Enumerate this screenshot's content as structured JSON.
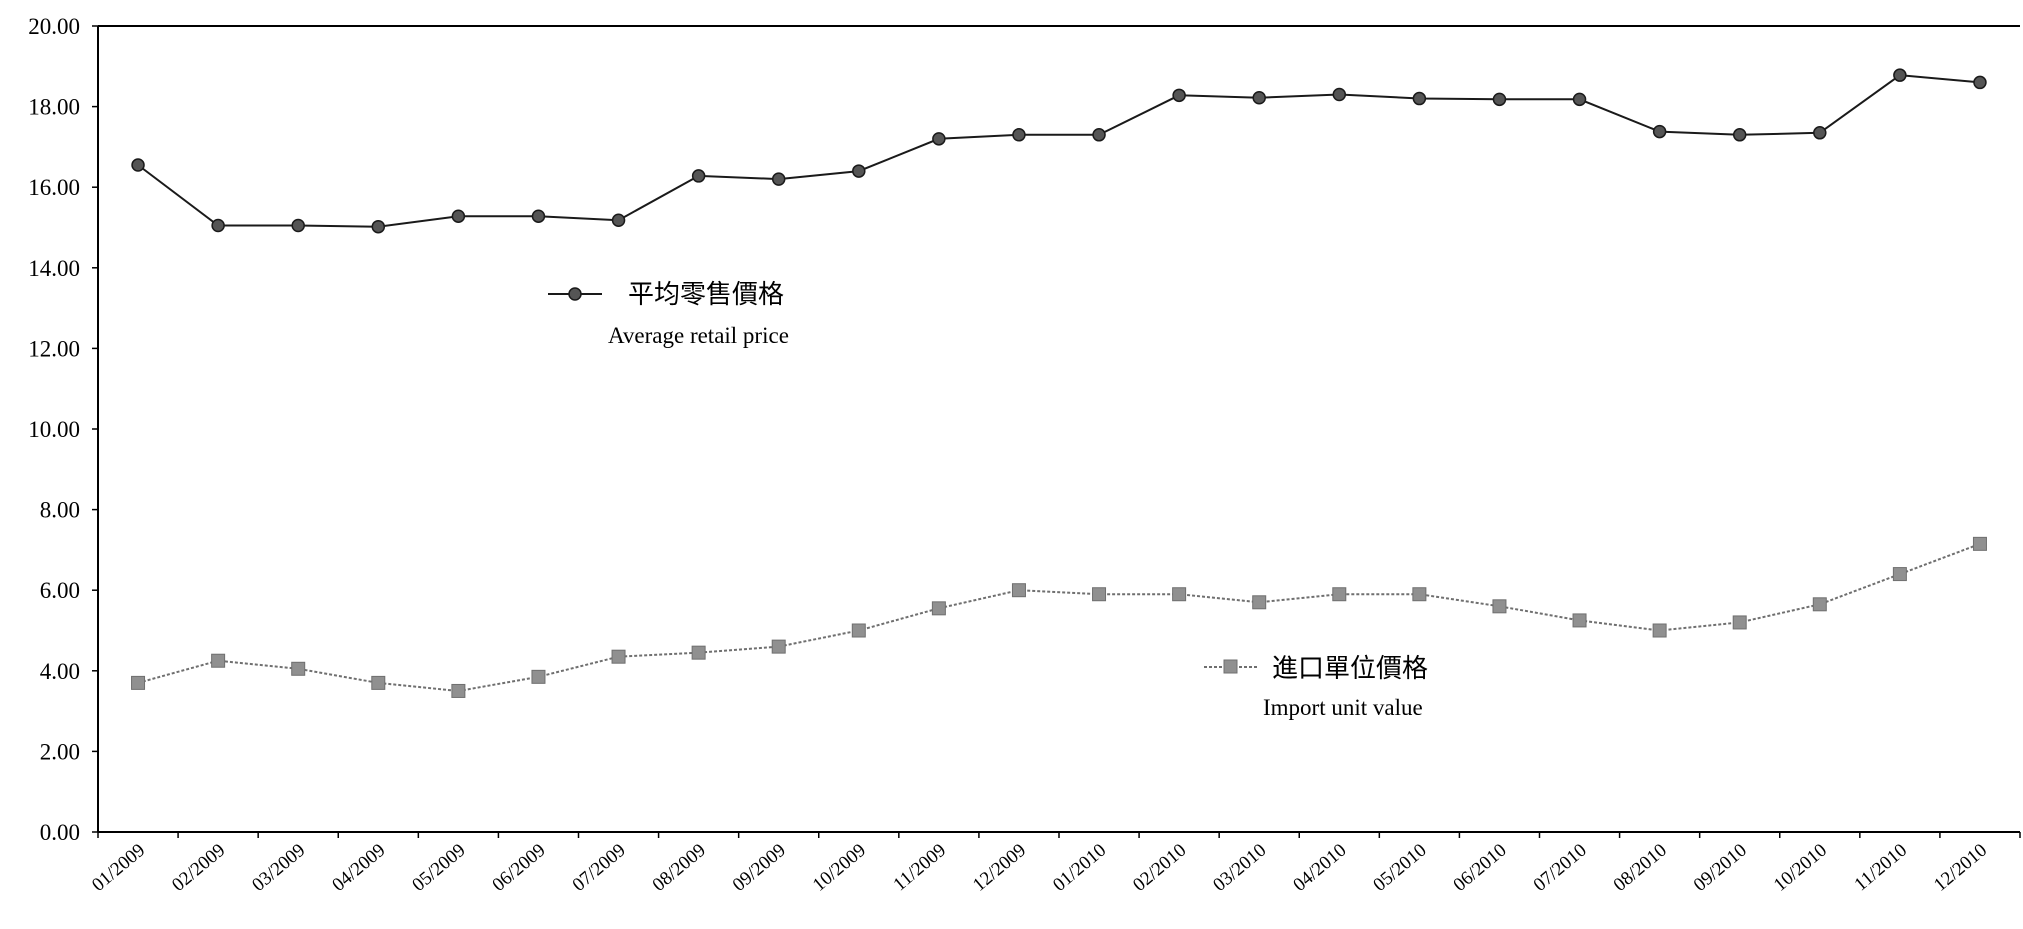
{
  "chart_data": {
    "type": "line",
    "title": "",
    "xlabel": "",
    "ylabel": "",
    "ylim": [
      0,
      20
    ],
    "y_ticks": [
      "0.00",
      "2.00",
      "4.00",
      "6.00",
      "8.00",
      "10.00",
      "12.00",
      "14.00",
      "16.00",
      "18.00",
      "20.00"
    ],
    "grid": false,
    "categories": [
      "01/2009",
      "02/2009",
      "03/2009",
      "04/2009",
      "05/2009",
      "06/2009",
      "07/2009",
      "08/2009",
      "09/2009",
      "10/2009",
      "11/2009",
      "12/2009",
      "01/2010",
      "02/2010",
      "03/2010",
      "04/2010",
      "05/2010",
      "06/2010",
      "07/2010",
      "08/2010",
      "09/2010",
      "10/2010",
      "11/2010",
      "12/2010"
    ],
    "series": [
      {
        "name": "平均零售價格",
        "name_en": "Average retail price",
        "color": "#1a1a1a",
        "marker_color": "#555555",
        "values": [
          16.55,
          15.05,
          15.05,
          15.02,
          15.28,
          15.28,
          15.18,
          16.28,
          16.2,
          16.4,
          17.2,
          17.3,
          17.3,
          18.28,
          18.22,
          18.3,
          18.2,
          18.18,
          18.18,
          17.38,
          17.3,
          17.35,
          18.78,
          18.6
        ]
      },
      {
        "name": "進口單位價格",
        "name_en": "Import unit value",
        "color": "#6f6f6f",
        "marker_color": "#909090",
        "values": [
          3.7,
          4.25,
          4.05,
          3.7,
          3.5,
          3.85,
          4.35,
          4.45,
          4.6,
          5.0,
          5.55,
          6.0,
          5.9,
          5.9,
          5.7,
          5.9,
          5.9,
          5.6,
          5.25,
          5.0,
          5.2,
          5.65,
          6.4,
          7.15
        ]
      }
    ],
    "legend_placement": "inline"
  }
}
